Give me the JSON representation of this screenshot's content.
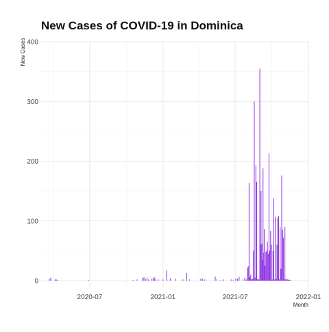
{
  "chart_data": {
    "type": "bar",
    "title": "New Cases of COVID-19 in Dominica",
    "xlabel": "Month",
    "ylabel": "New Cases",
    "x_axis": {
      "min": "2020-03-01",
      "max": "2022-01-01",
      "ticks": [
        "2020-07",
        "2021-01",
        "2021-07",
        "2022-01"
      ]
    },
    "y_axis": {
      "min": 0,
      "max": 400,
      "ticks": [
        0,
        100,
        200,
        300,
        400
      ]
    },
    "grid": true,
    "bar_color": "#8a2be2",
    "series": [
      {
        "dates": [
          "2020-03-22",
          "2020-03-25",
          "2020-04-06",
          "2020-04-08",
          "2020-04-12",
          "2020-06-28",
          "2020-10-18",
          "2020-10-28",
          "2020-11-10",
          "2020-11-14",
          "2020-11-18",
          "2020-11-22",
          "2020-11-26",
          "2020-12-03",
          "2020-12-07",
          "2020-12-10",
          "2020-12-13",
          "2020-12-20",
          "2021-01-01",
          "2021-01-10",
          "2021-01-19",
          "2021-02-02",
          "2021-02-20",
          "2021-03-01",
          "2021-03-08",
          "2021-04-06",
          "2021-04-10",
          "2021-04-16",
          "2021-05-12",
          "2021-05-16",
          "2021-05-26",
          "2021-06-02",
          "2021-06-21",
          "2021-06-26",
          "2021-07-03",
          "2021-07-07",
          "2021-07-11",
          "2021-07-21",
          "2021-07-25",
          "2021-07-29",
          "2021-08-01",
          "2021-08-03",
          "2021-08-05",
          "2021-08-07",
          "2021-08-09",
          "2021-08-10",
          "2021-08-12",
          "2021-08-14",
          "2021-08-16",
          "2021-08-18",
          "2021-08-20",
          "2021-08-22",
          "2021-08-24",
          "2021-08-26",
          "2021-08-28",
          "2021-08-30",
          "2021-09-01",
          "2021-09-02",
          "2021-09-04",
          "2021-09-06",
          "2021-09-08",
          "2021-09-09",
          "2021-09-10",
          "2021-09-12",
          "2021-09-14",
          "2021-09-16",
          "2021-09-18",
          "2021-09-20",
          "2021-09-22",
          "2021-09-24",
          "2021-09-26",
          "2021-09-28",
          "2021-09-30",
          "2021-10-02",
          "2021-10-04",
          "2021-10-06",
          "2021-10-08",
          "2021-10-10",
          "2021-10-12",
          "2021-10-14",
          "2021-10-16",
          "2021-10-18",
          "2021-10-20",
          "2021-10-22",
          "2021-10-24",
          "2021-10-26",
          "2021-10-28",
          "2021-10-30",
          "2021-11-01",
          "2021-11-03",
          "2021-11-05",
          "2021-11-07",
          "2021-11-09",
          "2021-11-11",
          "2021-11-13",
          "2021-11-15",
          "2021-11-17"
        ],
        "values": [
          3,
          5,
          2,
          2,
          1,
          1,
          1,
          2,
          4,
          6,
          3,
          5,
          2,
          3,
          4,
          6,
          3,
          2,
          2,
          17,
          4,
          3,
          2,
          13,
          2,
          4,
          3,
          2,
          7,
          2,
          1,
          2,
          2,
          1,
          4,
          3,
          7,
          2,
          5,
          2,
          22,
          24,
          164,
          6,
          10,
          2,
          3,
          3,
          50,
          300,
          5,
          193,
          165,
          3,
          2,
          2,
          355,
          60,
          150,
          62,
          35,
          188,
          47,
          86,
          25,
          48,
          50,
          65,
          45,
          213,
          50,
          83,
          60,
          2,
          50,
          138,
          2,
          107,
          3,
          60,
          105,
          108,
          2,
          90,
          20,
          176,
          85,
          72,
          2,
          90,
          2,
          3,
          2,
          1,
          2,
          1,
          1
        ]
      }
    ]
  }
}
